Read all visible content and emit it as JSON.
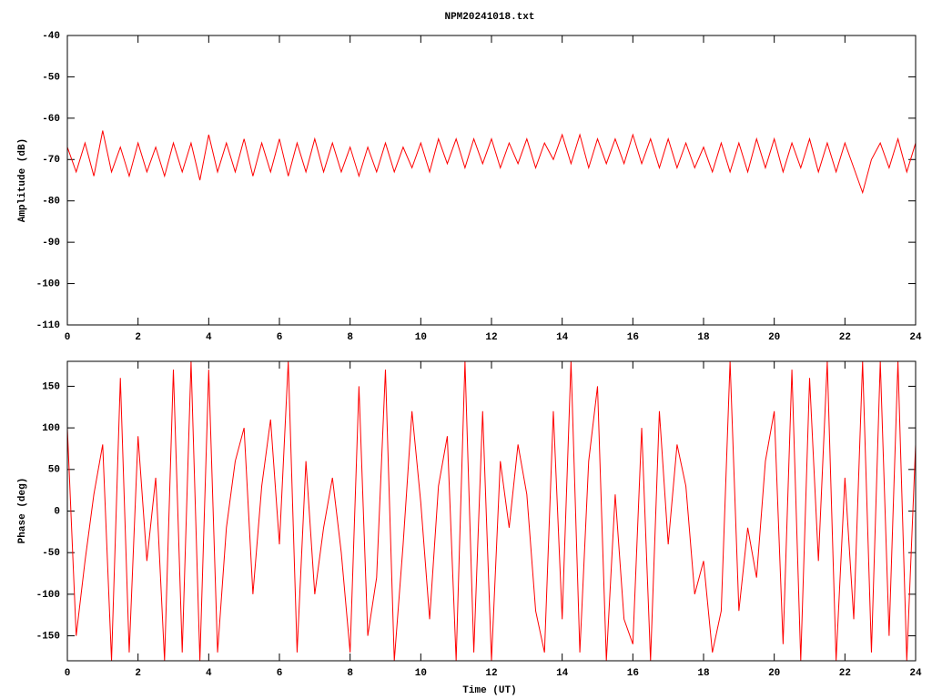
{
  "chart_data": [
    {
      "type": "line",
      "title": "NPM20241018.txt",
      "ylabel": "Amplitude (dB)",
      "xlim": [
        0,
        24
      ],
      "xticks": [
        0,
        2,
        4,
        6,
        8,
        10,
        12,
        14,
        16,
        18,
        20,
        22,
        24
      ],
      "ylim": [
        -110,
        -40
      ],
      "yticks": [
        -40,
        -50,
        -60,
        -70,
        -80,
        -90,
        -100,
        -110
      ],
      "grid": false,
      "x": [
        0,
        0.25,
        0.5,
        0.75,
        1,
        1.25,
        1.5,
        1.75,
        2,
        2.25,
        2.5,
        2.75,
        3,
        3.25,
        3.5,
        3.75,
        4,
        4.25,
        4.5,
        4.75,
        5,
        5.25,
        5.5,
        5.75,
        6,
        6.25,
        6.5,
        6.75,
        7,
        7.25,
        7.5,
        7.75,
        8,
        8.25,
        8.5,
        8.75,
        9,
        9.25,
        9.5,
        9.75,
        10,
        10.25,
        10.5,
        10.75,
        11,
        11.25,
        11.5,
        11.75,
        12,
        12.25,
        12.5,
        12.75,
        13,
        13.25,
        13.5,
        13.75,
        14,
        14.25,
        14.5,
        14.75,
        15,
        15.25,
        15.5,
        15.75,
        16,
        16.25,
        16.5,
        16.75,
        17,
        17.25,
        17.5,
        17.75,
        18,
        18.25,
        18.5,
        18.75,
        19,
        19.25,
        19.5,
        19.75,
        20,
        20.25,
        20.5,
        20.75,
        21,
        21.25,
        21.5,
        21.75,
        22,
        22.25,
        22.5,
        22.75,
        23,
        23.25,
        23.5,
        23.75,
        24
      ],
      "series": [
        {
          "color": "#ff0000",
          "values": [
            -67,
            -73,
            -66,
            -74,
            -63,
            -73,
            -67,
            -74,
            -66,
            -73,
            -67,
            -74,
            -66,
            -73,
            -66,
            -75,
            -64,
            -73,
            -66,
            -73,
            -65,
            -74,
            -66,
            -73,
            -65,
            -74,
            -66,
            -73,
            -65,
            -73,
            -66,
            -73,
            -67,
            -74,
            -67,
            -73,
            -66,
            -73,
            -67,
            -72,
            -66,
            -73,
            -65,
            -71,
            -65,
            -72,
            -65,
            -71,
            -65,
            -72,
            -66,
            -71,
            -65,
            -72,
            -66,
            -70,
            -64,
            -71,
            -64,
            -72,
            -65,
            -71,
            -65,
            -71,
            -64,
            -71,
            -65,
            -72,
            -65,
            -72,
            -66,
            -72,
            -67,
            -73,
            -66,
            -73,
            -66,
            -73,
            -65,
            -72,
            -65,
            -73,
            -66,
            -72,
            -65,
            -73,
            -66,
            -73,
            -66,
            -72,
            -78,
            -70,
            -66,
            -72,
            -65,
            -73,
            -66
          ]
        }
      ]
    },
    {
      "type": "line",
      "xlabel": "Time (UT)",
      "ylabel": "Phase (deg)",
      "xlim": [
        0,
        24
      ],
      "xticks": [
        0,
        2,
        4,
        6,
        8,
        10,
        12,
        14,
        16,
        18,
        20,
        22,
        24
      ],
      "ylim": [
        -180,
        180
      ],
      "yticks": [
        150,
        100,
        50,
        0,
        -50,
        -100,
        -150
      ],
      "grid": false,
      "x": [
        0,
        0.25,
        0.5,
        0.75,
        1,
        1.25,
        1.5,
        1.75,
        2,
        2.25,
        2.5,
        2.75,
        3,
        3.25,
        3.5,
        3.75,
        4,
        4.25,
        4.5,
        4.75,
        5,
        5.25,
        5.5,
        5.75,
        6,
        6.25,
        6.5,
        6.75,
        7,
        7.25,
        7.5,
        7.75,
        8,
        8.25,
        8.5,
        8.75,
        9,
        9.25,
        9.5,
        9.75,
        10,
        10.25,
        10.5,
        10.75,
        11,
        11.25,
        11.5,
        11.75,
        12,
        12.25,
        12.5,
        12.75,
        13,
        13.25,
        13.5,
        13.75,
        14,
        14.25,
        14.5,
        14.75,
        15,
        15.25,
        15.5,
        15.75,
        16,
        16.25,
        16.5,
        16.75,
        17,
        17.25,
        17.5,
        17.75,
        18,
        18.25,
        18.5,
        18.75,
        19,
        19.25,
        19.5,
        19.75,
        20,
        20.25,
        20.5,
        20.75,
        21,
        21.25,
        21.5,
        21.75,
        22,
        22.25,
        22.5,
        22.75,
        23,
        23.25,
        23.5,
        23.75,
        24
      ],
      "series": [
        {
          "color": "#ff0000",
          "values": [
            100,
            -150,
            -60,
            20,
            80,
            -180,
            160,
            -170,
            90,
            -60,
            40,
            -180,
            170,
            -170,
            180,
            -180,
            170,
            -170,
            -20,
            60,
            100,
            -100,
            30,
            110,
            -40,
            180,
            -170,
            60,
            -100,
            -20,
            40,
            -50,
            -170,
            150,
            -150,
            -80,
            170,
            -180,
            -40,
            120,
            10,
            -130,
            30,
            90,
            -180,
            180,
            -170,
            120,
            -180,
            60,
            -20,
            80,
            20,
            -120,
            -170,
            120,
            -130,
            180,
            -170,
            60,
            150,
            -180,
            20,
            -130,
            -160,
            100,
            -180,
            120,
            -40,
            80,
            30,
            -100,
            -60,
            -170,
            -120,
            180,
            -120,
            -20,
            -80,
            60,
            120,
            -160,
            170,
            -180,
            160,
            -60,
            180,
            -180,
            40,
            -130,
            180,
            -170,
            180,
            -150,
            180,
            -180,
            80
          ]
        }
      ]
    }
  ]
}
